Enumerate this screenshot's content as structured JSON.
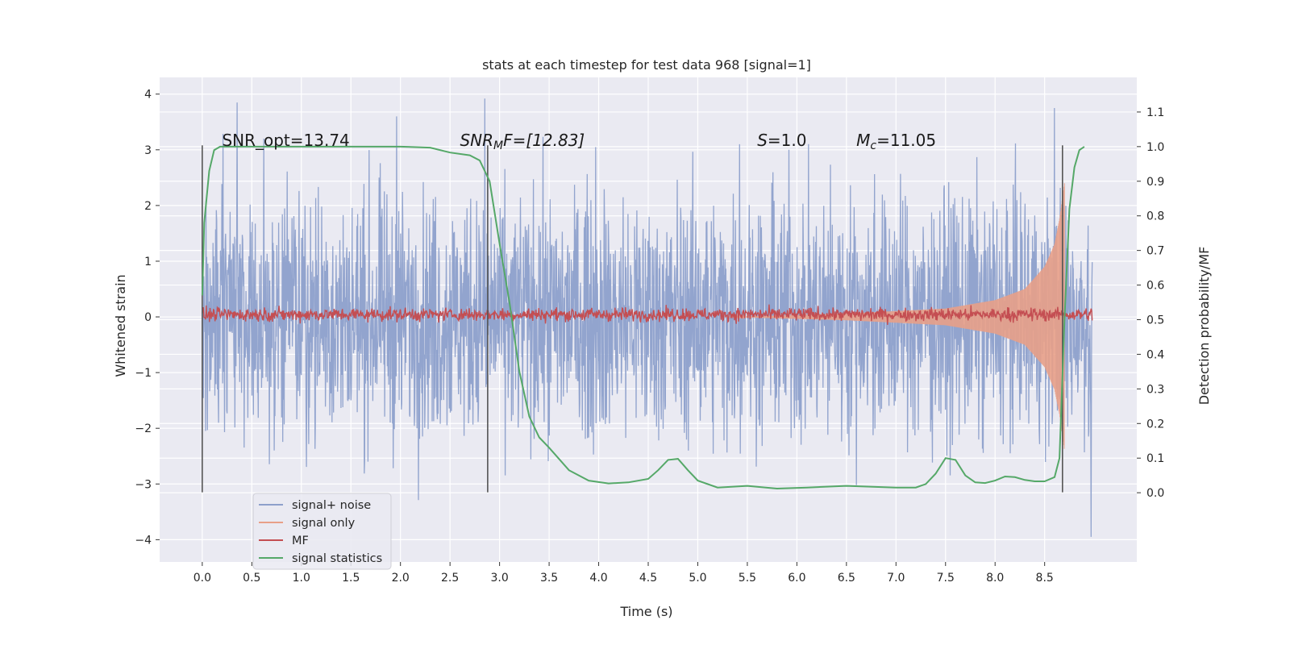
{
  "chart_data": {
    "type": "line",
    "title": "stats at each timestep for test data 968 [signal=1]",
    "xlabel": "Time (s)",
    "ylabel": "Whitened strain",
    "y2label": "Detection probability/MF",
    "xlim": [
      -0.43,
      9.43
    ],
    "ylim": [
      -4.4,
      4.3
    ],
    "y2lim": [
      -0.2,
      1.2
    ],
    "x_ticks": [
      0.0,
      0.5,
      1.0,
      1.5,
      2.0,
      2.5,
      3.0,
      3.5,
      4.0,
      4.5,
      5.0,
      5.5,
      6.0,
      6.5,
      7.0,
      7.5,
      8.0,
      8.5
    ],
    "x_tick_labels": [
      "0.0",
      "0.5",
      "1.0",
      "1.5",
      "2.0",
      "2.5",
      "3.0",
      "3.5",
      "4.0",
      "4.5",
      "5.0",
      "5.5",
      "6.0",
      "6.5",
      "7.0",
      "7.5",
      "8.0",
      "8.5"
    ],
    "y_ticks": [
      -4,
      -3,
      -2,
      -1,
      0,
      1,
      2,
      3,
      4
    ],
    "y_tick_labels": [
      "−4",
      "−3",
      "−2",
      "−1",
      "0",
      "1",
      "2",
      "3",
      "4"
    ],
    "y2_ticks": [
      0.0,
      0.1,
      0.2,
      0.3,
      0.4,
      0.5,
      0.6,
      0.7,
      0.8,
      0.9,
      1.0,
      1.1
    ],
    "y2_tick_labels": [
      "0.0",
      "0.1",
      "0.2",
      "0.3",
      "0.4",
      "0.5",
      "0.6",
      "0.7",
      "0.8",
      "0.9",
      "1.0",
      "1.1"
    ],
    "grid": true,
    "legend_position": "lower-left",
    "legend": [
      {
        "label": "signal+ noise",
        "color": "#8da0cb"
      },
      {
        "label": "signal only",
        "color": "#e8a088"
      },
      {
        "label": "MF",
        "color": "#c44e52"
      },
      {
        "label": "signal statistics",
        "color": "#55a868"
      }
    ],
    "annotations": {
      "snr_opt": {
        "text": "SNR_opt=13.74",
        "x": 0.2,
        "y2": 1.0
      },
      "snr_mf": {
        "pre": "SNR",
        "sub": "M",
        "post": "F=[12.83]",
        "x": 2.6,
        "y2": 1.0
      },
      "s": {
        "pre": "S",
        "post": "=1.0",
        "x": 5.6,
        "y2": 1.0
      },
      "mc": {
        "pre": "M",
        "sub": "c",
        "post": "=11.05",
        "x": 6.6,
        "y2": 1.0
      }
    },
    "vlines": [
      0.0,
      2.88,
      8.68
    ],
    "vline_range_y": [
      -3.15,
      3.08
    ],
    "series": [
      {
        "name": "signal+ noise",
        "axis": "left",
        "color": "#8da0cb",
        "style": "noise",
        "x_range": [
          0.0,
          8.98
        ],
        "envelope": 2.0,
        "peaks_x": [
          0.35,
          0.62,
          1.96,
          2.85,
          3.97,
          5.42,
          5.92,
          8.6,
          8.97
        ],
        "peaks_y": [
          3.85,
          3.2,
          3.6,
          3.92,
          3.05,
          3.1,
          3.0,
          3.75,
          -3.95
        ]
      },
      {
        "name": "signal only",
        "axis": "left",
        "color": "#e8a088",
        "style": "chirp",
        "x": [
          5.3,
          6.5,
          7.5,
          8.0,
          8.3,
          8.5,
          8.6,
          8.65,
          8.7
        ],
        "amplitude": [
          0.0,
          0.06,
          0.15,
          0.3,
          0.5,
          0.9,
          1.3,
          1.75,
          2.4
        ]
      },
      {
        "name": "MF",
        "axis": "right",
        "color": "#c44e52",
        "style": "noise",
        "x_range": [
          0.0,
          8.98
        ],
        "mean": 0.515,
        "spread": 0.012
      },
      {
        "name": "signal statistics",
        "axis": "right",
        "color": "#55a868",
        "style": "line",
        "x": [
          0.0,
          0.02,
          0.07,
          0.12,
          0.18,
          0.3,
          0.5,
          1.0,
          1.5,
          2.0,
          2.3,
          2.5,
          2.7,
          2.8,
          2.9,
          3.0,
          3.1,
          3.2,
          3.3,
          3.4,
          3.5,
          3.7,
          3.9,
          4.1,
          4.3,
          4.5,
          4.6,
          4.7,
          4.8,
          4.9,
          5.0,
          5.2,
          5.5,
          5.8,
          6.1,
          6.5,
          7.0,
          7.2,
          7.3,
          7.4,
          7.5,
          7.6,
          7.7,
          7.8,
          7.9,
          8.0,
          8.1,
          8.2,
          8.3,
          8.4,
          8.5,
          8.6,
          8.65,
          8.7,
          8.75,
          8.8,
          8.85,
          8.9
        ],
        "y": [
          0.57,
          0.78,
          0.93,
          0.99,
          1.0,
          1.0,
          1.0,
          1.0,
          1.0,
          1.0,
          0.997,
          0.983,
          0.975,
          0.96,
          0.9,
          0.72,
          0.55,
          0.35,
          0.22,
          0.16,
          0.13,
          0.065,
          0.035,
          0.027,
          0.03,
          0.04,
          0.065,
          0.095,
          0.098,
          0.065,
          0.035,
          0.015,
          0.02,
          0.012,
          0.015,
          0.02,
          0.015,
          0.015,
          0.025,
          0.055,
          0.1,
          0.095,
          0.05,
          0.03,
          0.028,
          0.035,
          0.047,
          0.045,
          0.037,
          0.033,
          0.033,
          0.045,
          0.1,
          0.5,
          0.82,
          0.94,
          0.99,
          1.0
        ]
      }
    ]
  }
}
